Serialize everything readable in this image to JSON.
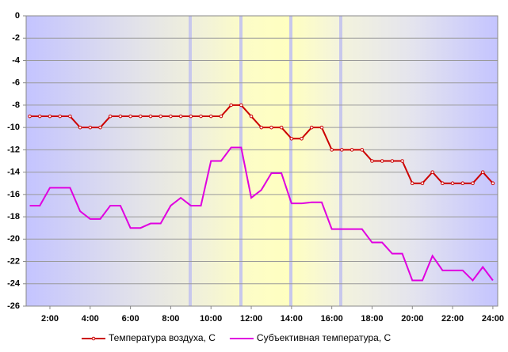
{
  "chart_data": {
    "type": "line",
    "x": [
      1,
      1.5,
      2,
      2.5,
      3,
      3.5,
      4,
      4.5,
      5,
      5.5,
      6,
      6.5,
      7,
      7.5,
      8,
      8.5,
      9,
      9.5,
      10,
      10.5,
      11,
      11.5,
      12,
      12.5,
      13,
      13.5,
      14,
      14.5,
      15,
      15.5,
      16,
      16.5,
      17,
      17.5,
      18,
      18.5,
      19,
      19.5,
      20,
      20.5,
      21,
      21.5,
      22,
      22.5,
      23,
      23.5,
      24
    ],
    "series": [
      {
        "name": "Температура воздуха, С",
        "color": "#cc0000",
        "markers": true,
        "values": [
          -9,
          -9,
          -9,
          -9,
          -9,
          -10,
          -10,
          -10,
          -9,
          -9,
          -9,
          -9,
          -9,
          -9,
          -9,
          -9,
          -9,
          -9,
          -9,
          -9,
          -8,
          -8,
          -9,
          -10,
          -10,
          -10,
          -11,
          -11,
          -10,
          -10,
          -12,
          -12,
          -12,
          -12,
          -13,
          -13,
          -13,
          -13,
          -15,
          -15,
          -14,
          -15,
          -15,
          -15,
          -15,
          -14,
          -15
        ]
      },
      {
        "name": "Субъективная температура, С",
        "color": "#e000e0",
        "markers": false,
        "values": [
          -17,
          -17,
          -15.4,
          -15.4,
          -15.4,
          -17.5,
          -18.2,
          -18.2,
          -17,
          -17,
          -19,
          -19,
          -18.6,
          -18.6,
          -17,
          -16.3,
          -17,
          -17,
          -13,
          -13,
          -11.8,
          -11.8,
          -16.3,
          -15.6,
          -14.1,
          -14.1,
          -16.8,
          -16.8,
          -16.7,
          -16.7,
          -19.1,
          -19.1,
          -19.1,
          -19.1,
          -20.3,
          -20.3,
          -21.3,
          -21.3,
          -23.7,
          -23.7,
          -21.5,
          -22.8,
          -22.8,
          -22.8,
          -23.7,
          -22.5,
          -23.7
        ]
      }
    ],
    "xlim": [
      0.82,
      24.24
    ],
    "xticks": [
      {
        "value": 2,
        "label": "2:00"
      },
      {
        "value": 4,
        "label": "4:00"
      },
      {
        "value": 6,
        "label": "6:00"
      },
      {
        "value": 8,
        "label": "8:00"
      },
      {
        "value": 10,
        "label": "10:00"
      },
      {
        "value": 12,
        "label": "12:00"
      },
      {
        "value": 14,
        "label": "14:00"
      },
      {
        "value": 16,
        "label": "16:00"
      },
      {
        "value": 18,
        "label": "18:00"
      },
      {
        "value": 20,
        "label": "20:00"
      },
      {
        "value": 22,
        "label": "22:00"
      },
      {
        "value": 24,
        "label": "24:00"
      }
    ],
    "ylim": [
      -26,
      0
    ],
    "yticks": [
      0,
      -2,
      -4,
      -6,
      -8,
      -10,
      -12,
      -14,
      -16,
      -18,
      -20,
      -22,
      -24,
      -26
    ],
    "grid": true,
    "legend": "bottom"
  }
}
